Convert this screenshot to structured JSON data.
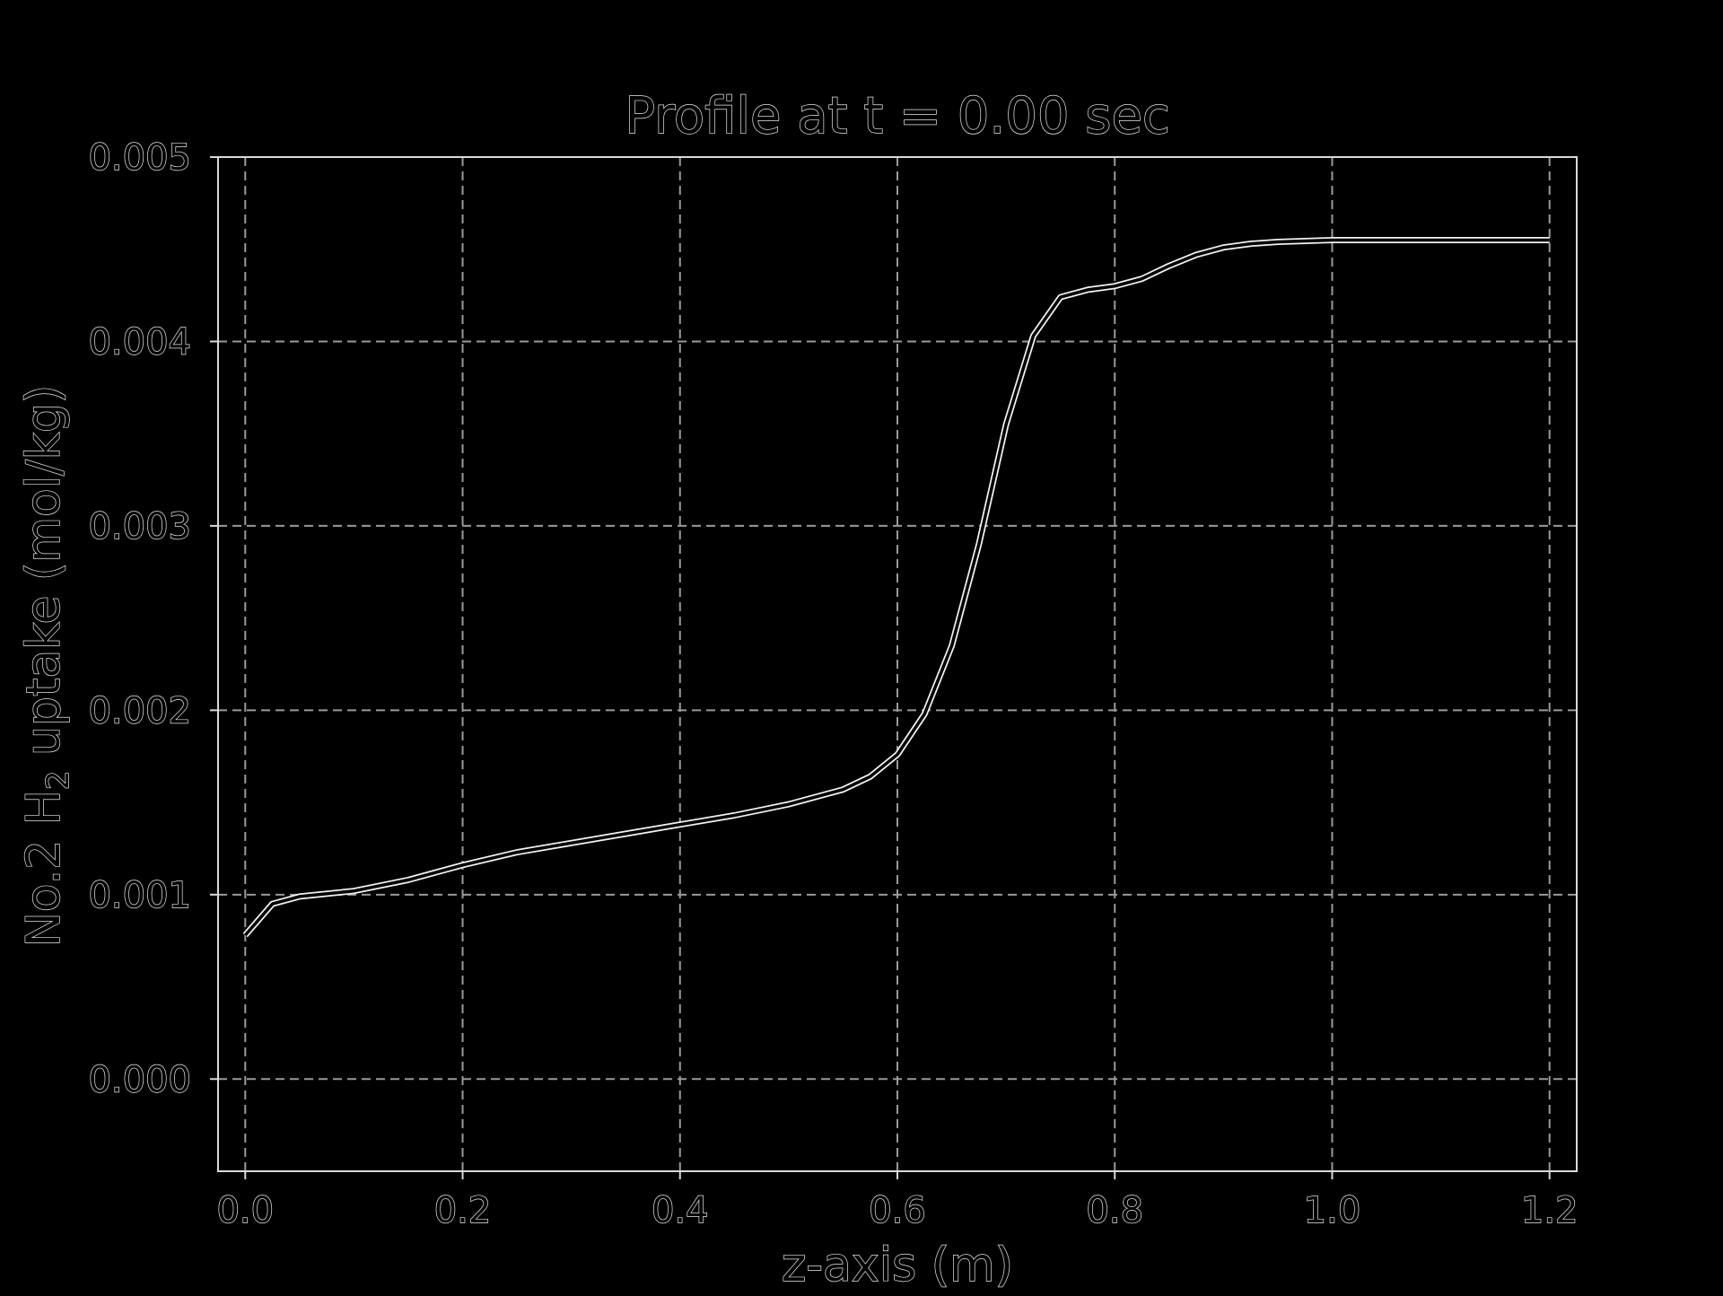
{
  "chart_data": {
    "type": "line",
    "title": "Profile at t = 0.00 sec",
    "xlabel": "z-axis (m)",
    "ylabel_parts": {
      "before": "No.2 H",
      "subscript": "2",
      "after": " uptake (mol/kg)"
    },
    "xlim": [
      -0.025,
      1.225
    ],
    "ylim": [
      -0.0005,
      0.005
    ],
    "x_ticks": [
      0.0,
      0.2,
      0.4,
      0.6,
      0.8,
      1.0,
      1.2
    ],
    "x_tick_labels": [
      "0.0",
      "0.2",
      "0.4",
      "0.6",
      "0.8",
      "1.0",
      "1.2"
    ],
    "y_ticks": [
      0.0,
      0.001,
      0.002,
      0.003,
      0.004,
      0.005
    ],
    "y_tick_labels": [
      "0.000",
      "0.001",
      "0.002",
      "0.003",
      "0.004",
      "0.005"
    ],
    "grid": true,
    "colors": {
      "background": "#000000",
      "line": "#f2f2f2",
      "grid": "#9a9a9a",
      "text_outline": "#e4e4e4"
    },
    "series": [
      {
        "x": [
          0.0,
          0.025,
          0.05,
          0.1,
          0.15,
          0.2,
          0.25,
          0.3,
          0.35,
          0.4,
          0.45,
          0.5,
          0.55,
          0.575,
          0.6,
          0.625,
          0.65,
          0.675,
          0.7,
          0.725,
          0.75,
          0.775,
          0.8,
          0.825,
          0.85,
          0.875,
          0.9,
          0.925,
          0.95,
          1.0,
          1.1,
          1.2
        ],
        "y": [
          0.00078,
          0.00095,
          0.00099,
          0.00102,
          0.00108,
          0.00116,
          0.00123,
          0.00128,
          0.00133,
          0.00138,
          0.00143,
          0.00149,
          0.00157,
          0.00164,
          0.00176,
          0.00198,
          0.00235,
          0.0029,
          0.00355,
          0.00403,
          0.00424,
          0.00428,
          0.0043,
          0.00434,
          0.00441,
          0.00447,
          0.00451,
          0.00453,
          0.00454,
          0.00455,
          0.00455,
          0.00455
        ]
      }
    ]
  }
}
